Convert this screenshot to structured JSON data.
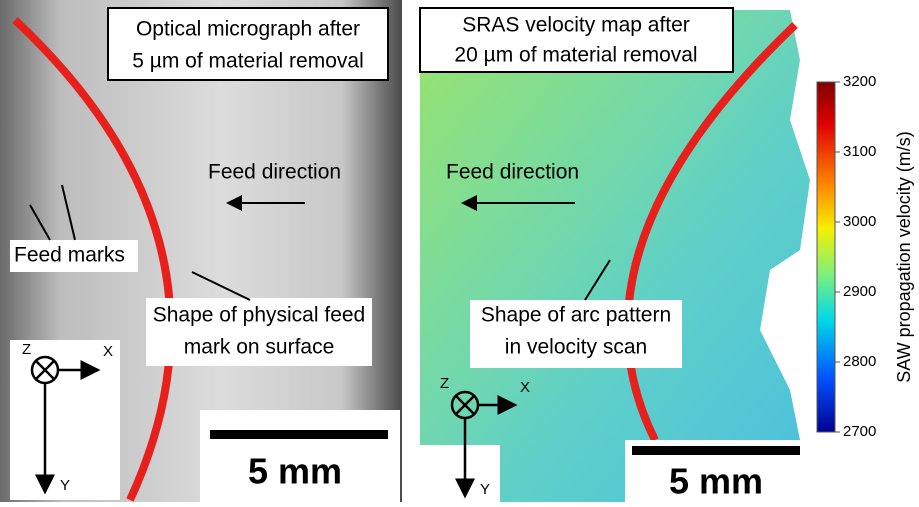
{
  "left_panel": {
    "title": [
      "Optical micrograph after",
      "5 µm of material removal"
    ],
    "feed_direction": "Feed direction",
    "feed_marks": "Feed marks",
    "shape_label": [
      "Shape of physical feed",
      "mark on surface"
    ],
    "axes": {
      "z": "Z",
      "x": "X",
      "y": "Y"
    },
    "scale_bar": "5 mm"
  },
  "right_panel": {
    "title": [
      "SRAS velocity map after",
      "20 µm of material removal"
    ],
    "feed_direction": "Feed direction",
    "shape_label": [
      "Shape of arc pattern",
      "in velocity scan"
    ],
    "axes": {
      "z": "Z",
      "x": "X",
      "y": "Y"
    },
    "scale_bar": "5 mm"
  },
  "colorbar": {
    "label": "SAW propagation velocity (m/s)",
    "range": [
      2700,
      3200
    ],
    "ticks": [
      2700,
      2800,
      2900,
      3000,
      3100,
      3200
    ]
  }
}
